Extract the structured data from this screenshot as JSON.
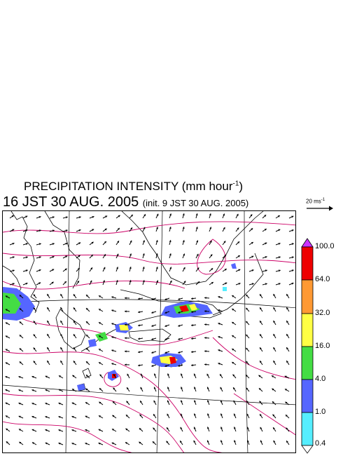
{
  "title": {
    "main_text": "PRECIPITATION INTENSITY (mm hour",
    "main_exp": "-1",
    "main_close": ")",
    "datetime": "16 JST 30 AUG. 2005",
    "init_note": "(init. 9 JST 30 AUG. 2005)"
  },
  "wind_reference": {
    "label_text": "20 ms",
    "label_exp": "-1",
    "arrow_icon": "reference-wind-arrow-icon"
  },
  "map": {
    "subject": "precipitation rate and surface wind vectors over southwestern Japan",
    "contour_color": "#cc0066",
    "coastline_color": "#000000",
    "grid_color": "#000000"
  },
  "colorbar": {
    "levels": [
      "100.0",
      "64.0",
      "32.0",
      "16.0",
      "4.0",
      "1.0",
      "0.4"
    ],
    "colors": {
      "over": "#cc33ff",
      "c64_100": "#ee0000",
      "c32_64": "#ff9933",
      "c16_32": "#ffff44",
      "c4_16": "#44dd44",
      "c1_4": "#5566ff",
      "c04_1": "#55eeff",
      "under": "#ffffff"
    }
  }
}
